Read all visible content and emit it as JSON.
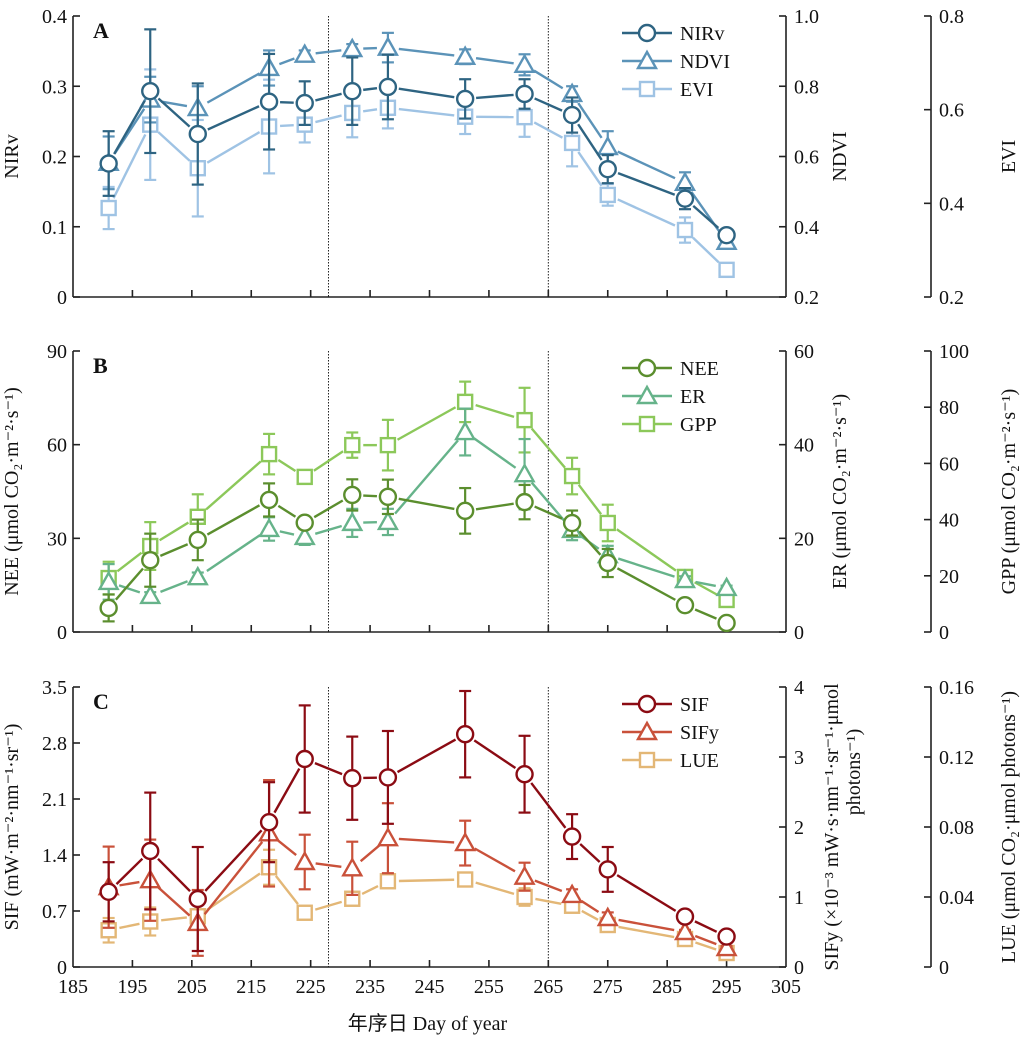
{
  "chart_data": [
    {
      "type": "line",
      "panel": "A",
      "x": [
        191,
        198,
        206,
        218,
        224,
        232,
        238,
        251,
        261,
        269,
        275,
        288,
        295
      ],
      "xlim": [
        185,
        305
      ],
      "xticks": [
        185,
        195,
        205,
        215,
        225,
        235,
        245,
        255,
        265,
        275,
        285,
        295,
        305
      ],
      "show_xtick_labels": false,
      "dividers": [
        228,
        265
      ],
      "legend_position": "top-right",
      "axes": [
        {
          "id": "left",
          "label": "NIRv",
          "ylim": [
            0,
            0.4
          ],
          "ticks": [
            "0",
            "0.1",
            "0.2",
            "0.3",
            "0.4"
          ]
        },
        {
          "id": "right1",
          "label": "NDVI",
          "ylim": [
            0.2,
            1.0
          ],
          "ticks": [
            "0.2",
            "0.4",
            "0.6",
            "0.8",
            "1.0"
          ]
        },
        {
          "id": "right2",
          "label": "EVI",
          "ylim": [
            0.2,
            0.8
          ],
          "ticks": [
            "0.2",
            "0.4",
            "0.6",
            "0.8"
          ]
        }
      ],
      "series": [
        {
          "name": "NIRv",
          "axis": "left",
          "marker": "circle",
          "color": "#2e6482",
          "values": [
            0.19,
            0.293,
            0.232,
            0.278,
            0.276,
            0.293,
            0.299,
            0.282,
            0.289,
            0.259,
            0.182,
            0.14,
            0.088
          ],
          "err": [
            0.046,
            0.088,
            0.072,
            0.068,
            0.031,
            0.048,
            0.046,
            0.028,
            0.021,
            0.025,
            0.02,
            0.015,
            0.006
          ]
        },
        {
          "name": "NDVI",
          "axis": "right1",
          "marker": "triangle",
          "color": "#5b93b8",
          "values": [
            0.582,
            0.762,
            0.738,
            0.852,
            0.89,
            0.906,
            0.91,
            0.884,
            0.861,
            0.778,
            0.627,
            0.525,
            0.357
          ],
          "err": [
            0.075,
            0.065,
            0.062,
            0.05,
            0.012,
            0.014,
            0.042,
            0.021,
            0.03,
            0.022,
            0.045,
            0.03,
            0.008
          ]
        },
        {
          "name": "EVI",
          "axis": "right2",
          "marker": "square",
          "color": "#9fc3e4",
          "values": [
            0.39,
            0.568,
            0.475,
            0.564,
            0.568,
            0.593,
            0.604,
            0.585,
            0.584,
            0.529,
            0.418,
            0.343,
            0.258
          ],
          "err": [
            0.045,
            0.118,
            0.103,
            0.1,
            0.038,
            0.052,
            0.044,
            0.037,
            0.042,
            0.05,
            0.023,
            0.027,
            0.005
          ]
        }
      ],
      "panel_letter": "A"
    },
    {
      "type": "line",
      "panel": "B",
      "x": [
        191,
        198,
        206,
        218,
        224,
        232,
        238,
        251,
        261,
        269,
        275,
        288,
        295
      ],
      "xlim": [
        185,
        305
      ],
      "xticks": [
        185,
        195,
        205,
        215,
        225,
        235,
        245,
        255,
        265,
        275,
        285,
        295,
        305
      ],
      "show_xtick_labels": false,
      "dividers": [
        228,
        265
      ],
      "legend_position": "top-right",
      "axes": [
        {
          "id": "left",
          "label": "NEE (μmol CO₂·m⁻²·s⁻¹)",
          "ylim": [
            0,
            90
          ],
          "ticks": [
            "0",
            "30",
            "60",
            "90"
          ]
        },
        {
          "id": "right1",
          "label": "ER (μmol CO₂·m⁻²·s⁻¹)",
          "ylim": [
            0,
            60
          ],
          "ticks": [
            "0",
            "20",
            "40",
            "60"
          ]
        },
        {
          "id": "right2",
          "label": "GPP (μmol CO₂·m⁻²·s⁻¹)",
          "ylim": [
            0,
            100
          ],
          "ticks": [
            "0",
            "20",
            "40",
            "60",
            "80",
            "100"
          ]
        }
      ],
      "series": [
        {
          "name": "NEE",
          "axis": "left",
          "marker": "circle",
          "color": "#5b8e2e",
          "values": [
            7.7,
            23.0,
            29.5,
            42.3,
            35.0,
            43.9,
            43.3,
            38.8,
            41.6,
            34.9,
            22.1,
            8.6,
            2.9
          ],
          "err": [
            4.3,
            8.5,
            6.5,
            5.3,
            1.0,
            5.0,
            5.5,
            7.3,
            5.5,
            4.0,
            4.5,
            1.0,
            1.0
          ]
        },
        {
          "name": "ER",
          "axis": "right1",
          "marker": "triangle",
          "color": "#66b38a",
          "values": [
            10.7,
            7.7,
            11.7,
            22.0,
            20.3,
            23.3,
            23.5,
            42.7,
            33.7,
            21.8,
            16.4,
            11.1,
            9.4
          ],
          "err": [
            3.8,
            0.8,
            1.0,
            2.5,
            1.7,
            3.0,
            2.8,
            5.0,
            7.5,
            2.2,
            2.0,
            0.8,
            0.5
          ]
        },
        {
          "name": "GPP",
          "axis": "right2",
          "marker": "square",
          "color": "#8cc85a",
          "values": [
            19.2,
            30.6,
            41.0,
            63.3,
            55.2,
            66.5,
            66.5,
            81.9,
            75.4,
            55.5,
            38.8,
            19.6,
            11.4
          ],
          "err": [
            5.8,
            8.5,
            8.0,
            7.2,
            1.0,
            4.5,
            9.0,
            7.2,
            11.5,
            6.5,
            6.5,
            1.0,
            1.0
          ]
        }
      ],
      "panel_letter": "B"
    },
    {
      "type": "line",
      "panel": "C",
      "x": [
        191,
        198,
        206,
        218,
        224,
        232,
        238,
        251,
        261,
        269,
        275,
        288,
        295
      ],
      "xlim": [
        185,
        305
      ],
      "xticks": [
        185,
        195,
        205,
        215,
        225,
        235,
        245,
        255,
        265,
        275,
        285,
        295,
        305
      ],
      "show_xtick_labels": true,
      "dividers": [
        228,
        265
      ],
      "legend_position": "top-right",
      "xlabel": "年序日 Day of year",
      "axes": [
        {
          "id": "left",
          "label": "SIF (mW·m⁻²·nm⁻¹·sr⁻¹)",
          "ylim": [
            0,
            3.5
          ],
          "ticks": [
            "0",
            "0.7",
            "1.4",
            "2.1",
            "2.8",
            "3.5"
          ]
        },
        {
          "id": "right1",
          "label": "SIFy (×10⁻³ mW·s·nm⁻¹·sr⁻¹·μmol",
          "label2": "photons⁻¹)",
          "ylim": [
            0,
            4
          ],
          "ticks": [
            "0",
            "1",
            "2",
            "3",
            "4"
          ]
        },
        {
          "id": "right2",
          "label": "LUE (μmol CO₂·μmol photons⁻¹)",
          "ylim": [
            0,
            0.16
          ],
          "ticks": [
            "0",
            "0.04",
            "0.08",
            "0.12",
            "0.16"
          ]
        }
      ],
      "series": [
        {
          "name": "SIF",
          "axis": "left",
          "marker": "circle",
          "color": "#8b0b13",
          "values": [
            0.94,
            1.45,
            0.85,
            1.81,
            2.6,
            2.36,
            2.37,
            2.91,
            2.41,
            1.63,
            1.22,
            0.63,
            0.38
          ],
          "err": [
            0.37,
            0.73,
            0.65,
            0.5,
            0.67,
            0.52,
            0.58,
            0.54,
            0.48,
            0.28,
            0.28,
            0.04,
            0.04
          ]
        },
        {
          "name": "SIFy",
          "axis": "right1",
          "marker": "triangle",
          "color": "#c9513a",
          "values": [
            1.14,
            1.24,
            0.63,
            1.91,
            1.5,
            1.41,
            1.84,
            1.77,
            1.29,
            1.03,
            0.7,
            0.5,
            0.27
          ],
          "err": [
            0.58,
            0.58,
            0.47,
            0.76,
            0.39,
            0.38,
            0.5,
            0.32,
            0.2,
            0.08,
            0.08,
            0.03,
            0.03
          ]
        },
        {
          "name": "LUE",
          "axis": "right2",
          "marker": "square",
          "color": "#e3b776",
          "values": [
            0.021,
            0.026,
            0.029,
            0.057,
            0.031,
            0.039,
            0.049,
            0.05,
            0.04,
            0.035,
            0.024,
            0.016,
            0.008
          ],
          "err": [
            0.007,
            0.008,
            0.002,
            0.01,
            0.002,
            0.002,
            0.002,
            0.002,
            0.005,
            0.002,
            0.002,
            0.001,
            0.002
          ]
        }
      ],
      "panel_letter": "C"
    }
  ]
}
